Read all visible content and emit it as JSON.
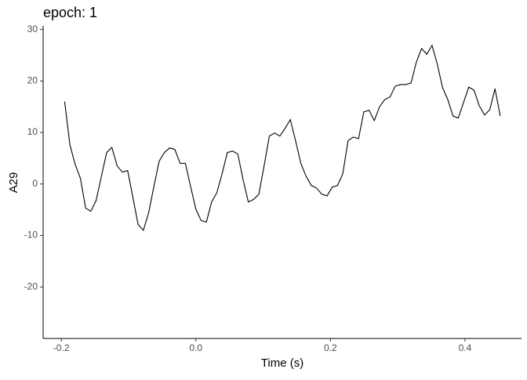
{
  "chart_data": {
    "type": "line",
    "title": "epoch: 1",
    "xlabel": "Time (s)",
    "ylabel": "A29",
    "x": [
      -0.195,
      -0.1872,
      -0.1794,
      -0.1716,
      -0.1638,
      -0.156,
      -0.1482,
      -0.1404,
      -0.1326,
      -0.1248,
      -0.117,
      -0.1092,
      -0.1014,
      -0.0936,
      -0.0858,
      -0.078,
      -0.0702,
      -0.0624,
      -0.0546,
      -0.0468,
      -0.039,
      -0.0312,
      -0.0234,
      -0.0156,
      -0.0078,
      0,
      0.0078,
      0.0156,
      0.0234,
      0.0312,
      0.039,
      0.0468,
      0.0546,
      0.0624,
      0.0702,
      0.078,
      0.0858,
      0.0936,
      0.1014,
      0.1092,
      0.117,
      0.1248,
      0.1326,
      0.1404,
      0.1482,
      0.156,
      0.1638,
      0.1716,
      0.1794,
      0.1872,
      0.195,
      0.2028,
      0.2106,
      0.2184,
      0.2262,
      0.234,
      0.2418,
      0.2496,
      0.2574,
      0.2652,
      0.273,
      0.2808,
      0.2886,
      0.2964,
      0.3042,
      0.312,
      0.3198,
      0.3276,
      0.3354,
      0.3432,
      0.351,
      0.3588,
      0.3666,
      0.3744,
      0.3822,
      0.39,
      0.3978,
      0.4056,
      0.4134,
      0.4212,
      0.429,
      0.4368,
      0.4446,
      0.4524
    ],
    "values": [
      16.0,
      7.6,
      3.8,
      1.1,
      -4.7,
      -5.3,
      -3.2,
      1.5,
      6.1,
      7.1,
      3.5,
      2.3,
      2.6,
      -2.6,
      -7.9,
      -9.0,
      -5.6,
      -0.5,
      4.4,
      6.1,
      7.0,
      6.7,
      4.0,
      4.0,
      -0.5,
      -4.9,
      -7.1,
      -7.4,
      -3.5,
      -1.7,
      2.0,
      6.1,
      6.4,
      5.8,
      0.8,
      -3.5,
      -3.0,
      -2.0,
      3.5,
      9.3,
      9.9,
      9.3,
      10.8,
      12.5,
      8.4,
      4.0,
      1.5,
      -0.3,
      -0.8,
      -2.0,
      -2.3,
      -0.6,
      -0.3,
      2.0,
      8.4,
      9.1,
      8.8,
      14.0,
      14.3,
      12.3,
      15.0,
      16.4,
      16.9,
      19.0,
      19.3,
      19.3,
      19.6,
      23.6,
      26.3,
      25.2,
      26.9,
      23.3,
      18.7,
      16.4,
      13.2,
      12.8,
      15.8,
      18.8,
      18.2,
      15.2,
      13.4,
      14.4,
      18.5,
      13.2
    ],
    "color": "#000000",
    "xlim": [
      -0.227,
      0.484
    ],
    "ylim": [
      -30,
      30.7
    ],
    "xticks": [
      -0.2,
      {
        "value": 0,
        "label": "0.0"
      },
      0.2,
      0.4
    ],
    "yticks": [
      -20,
      -10,
      0,
      10,
      20,
      30
    ]
  }
}
